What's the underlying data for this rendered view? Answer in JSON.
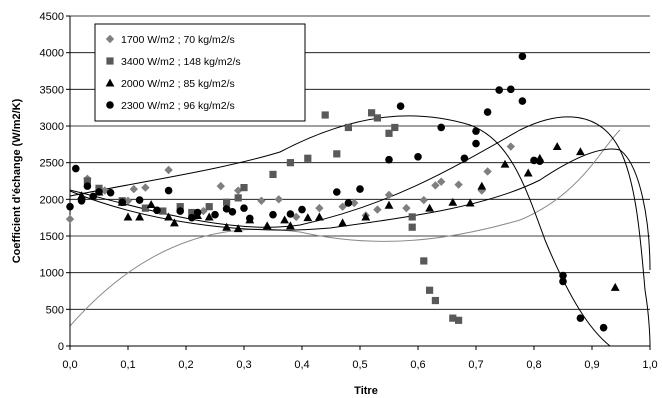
{
  "chart_data": {
    "type": "scatter",
    "xlabel": "Titre",
    "ylabel": "Coefficient d'échange (W/m2/K)",
    "xlim": [
      0,
      1
    ],
    "ylim": [
      0,
      4500
    ],
    "x_ticks": [
      "0,0",
      "0,1",
      "0,2",
      "0,3",
      "0,4",
      "0,5",
      "0,6",
      "0,7",
      "0,8",
      "0,9",
      "1,0"
    ],
    "y_ticks": [
      "0",
      "500",
      "1000",
      "1500",
      "2000",
      "2500",
      "3000",
      "3500",
      "4000",
      "4500"
    ],
    "grid": "horizontal",
    "legend_position": "top-left",
    "colors": {
      "series1": "#7f7f7f",
      "series2": "#595959",
      "series3": "#000000",
      "series4": "#000000"
    },
    "series": [
      {
        "name": "1700 W/m2 ; 70 kg/m2/s",
        "marker": "diamond",
        "points": [
          [
            0.0,
            1730
          ],
          [
            0.03,
            2280
          ],
          [
            0.06,
            2120
          ],
          [
            0.1,
            1980
          ],
          [
            0.11,
            2140
          ],
          [
            0.13,
            2160
          ],
          [
            0.17,
            2400
          ],
          [
            0.23,
            1840
          ],
          [
            0.26,
            2180
          ],
          [
            0.29,
            2120
          ],
          [
            0.33,
            1980
          ],
          [
            0.36,
            2000
          ],
          [
            0.39,
            1760
          ],
          [
            0.43,
            1880
          ],
          [
            0.47,
            1900
          ],
          [
            0.49,
            1950
          ],
          [
            0.51,
            1780
          ],
          [
            0.53,
            1860
          ],
          [
            0.55,
            2060
          ],
          [
            0.58,
            1880
          ],
          [
            0.61,
            1990
          ],
          [
            0.63,
            2190
          ],
          [
            0.64,
            2240
          ],
          [
            0.67,
            2200
          ],
          [
            0.71,
            2120
          ],
          [
            0.72,
            2380
          ],
          [
            0.76,
            2720
          ]
        ]
      },
      {
        "name": "3400 W/m2 ; 148 kg/m2/s",
        "marker": "square",
        "points": [
          [
            0.03,
            2250
          ],
          [
            0.05,
            2150
          ],
          [
            0.09,
            1980
          ],
          [
            0.13,
            1880
          ],
          [
            0.16,
            1840
          ],
          [
            0.19,
            1900
          ],
          [
            0.21,
            1820
          ],
          [
            0.24,
            1900
          ],
          [
            0.27,
            1960
          ],
          [
            0.29,
            2020
          ],
          [
            0.3,
            2160
          ],
          [
            0.35,
            2340
          ],
          [
            0.38,
            2500
          ],
          [
            0.41,
            2560
          ],
          [
            0.44,
            3150
          ],
          [
            0.46,
            2620
          ],
          [
            0.48,
            2980
          ],
          [
            0.52,
            3180
          ],
          [
            0.53,
            3110
          ],
          [
            0.55,
            2900
          ],
          [
            0.56,
            2980
          ],
          [
            0.59,
            1760
          ],
          [
            0.59,
            1620
          ],
          [
            0.61,
            1160
          ],
          [
            0.62,
            760
          ],
          [
            0.63,
            620
          ],
          [
            0.66,
            380
          ],
          [
            0.67,
            350
          ]
        ]
      },
      {
        "name": "2000 W/m2 ; 85 kg/m2/s",
        "marker": "triangle",
        "points": [
          [
            0.02,
            2050
          ],
          [
            0.05,
            2100
          ],
          [
            0.09,
            1960
          ],
          [
            0.1,
            1760
          ],
          [
            0.12,
            1760
          ],
          [
            0.14,
            1930
          ],
          [
            0.17,
            1760
          ],
          [
            0.18,
            1680
          ],
          [
            0.22,
            1780
          ],
          [
            0.24,
            1760
          ],
          [
            0.27,
            1620
          ],
          [
            0.29,
            1600
          ],
          [
            0.31,
            1720
          ],
          [
            0.34,
            1640
          ],
          [
            0.37,
            1720
          ],
          [
            0.38,
            1640
          ],
          [
            0.41,
            1750
          ],
          [
            0.43,
            1760
          ],
          [
            0.47,
            1680
          ],
          [
            0.51,
            1760
          ],
          [
            0.55,
            1920
          ],
          [
            0.62,
            1880
          ],
          [
            0.66,
            1960
          ],
          [
            0.69,
            1950
          ],
          [
            0.71,
            2180
          ],
          [
            0.75,
            2480
          ],
          [
            0.79,
            2360
          ],
          [
            0.81,
            2560
          ],
          [
            0.84,
            2720
          ],
          [
            0.88,
            2650
          ],
          [
            0.94,
            800
          ]
        ]
      },
      {
        "name": "2300 W/m2 ; 96 kg/m2/s",
        "marker": "circle",
        "points": [
          [
            0.0,
            1900
          ],
          [
            0.01,
            2420
          ],
          [
            0.02,
            1980
          ],
          [
            0.03,
            2180
          ],
          [
            0.04,
            2040
          ],
          [
            0.05,
            2100
          ],
          [
            0.07,
            2090
          ],
          [
            0.09,
            1960
          ],
          [
            0.12,
            1990
          ],
          [
            0.15,
            1850
          ],
          [
            0.17,
            2120
          ],
          [
            0.19,
            1840
          ],
          [
            0.21,
            1750
          ],
          [
            0.22,
            1820
          ],
          [
            0.25,
            1790
          ],
          [
            0.27,
            1870
          ],
          [
            0.28,
            1830
          ],
          [
            0.3,
            1880
          ],
          [
            0.31,
            1740
          ],
          [
            0.35,
            1790
          ],
          [
            0.38,
            1800
          ],
          [
            0.4,
            1860
          ],
          [
            0.46,
            2100
          ],
          [
            0.48,
            1950
          ],
          [
            0.5,
            2140
          ],
          [
            0.55,
            2540
          ],
          [
            0.57,
            3270
          ],
          [
            0.6,
            2580
          ],
          [
            0.64,
            2980
          ],
          [
            0.68,
            2560
          ],
          [
            0.7,
            2760
          ],
          [
            0.7,
            2930
          ],
          [
            0.72,
            3190
          ],
          [
            0.74,
            3490
          ],
          [
            0.76,
            3500
          ],
          [
            0.78,
            3950
          ],
          [
            0.78,
            3340
          ],
          [
            0.8,
            2530
          ],
          [
            0.81,
            2520
          ],
          [
            0.85,
            960
          ],
          [
            0.85,
            880
          ],
          [
            0.88,
            380
          ],
          [
            0.92,
            250
          ]
        ]
      }
    ]
  }
}
